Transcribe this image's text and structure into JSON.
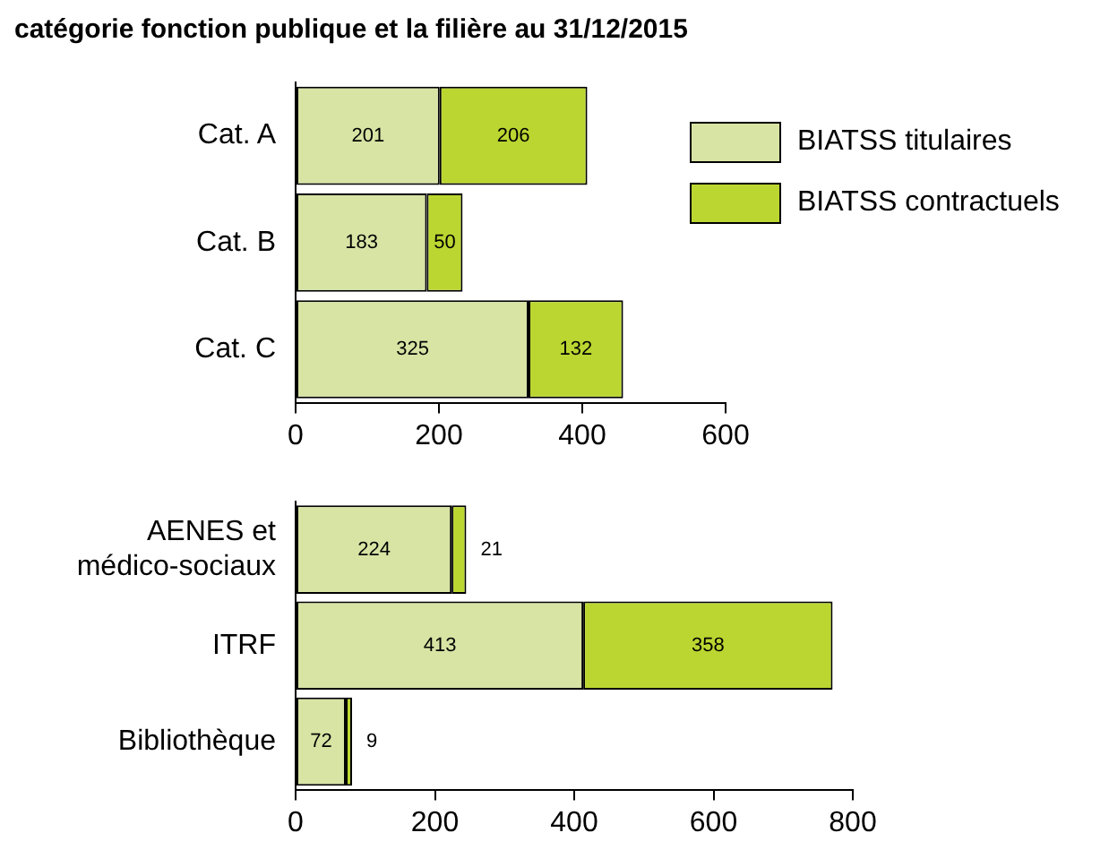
{
  "chart_data": [
    {
      "type": "bar",
      "title": "catégorie fonction publique et la filière au 31/12/2015",
      "orientation": "horizontal",
      "stacked": true,
      "categories": [
        "Cat. A",
        "Cat. B",
        "Cat. C"
      ],
      "series": [
        {
          "name": "BIATSS titulaires",
          "color": "#d7e4a4",
          "values": [
            201,
            183,
            325
          ]
        },
        {
          "name": "BIATSS contractuels",
          "color": "#bcd631",
          "values": [
            206,
            50,
            132
          ]
        }
      ],
      "xlim": [
        0,
        600
      ],
      "xticks": [
        0,
        200,
        400,
        600
      ],
      "data_labels": true,
      "legend": "right",
      "grid": false
    },
    {
      "type": "bar",
      "orientation": "horizontal",
      "stacked": true,
      "categories": [
        "AENES et médico-sociaux",
        "ITRF",
        "Bibliothèque"
      ],
      "series": [
        {
          "color": "#d7e4a4",
          "values": [
            224,
            413,
            72
          ]
        },
        {
          "color": "#bcd631",
          "values": [
            21,
            358,
            9
          ]
        }
      ],
      "xlim": [
        0,
        800
      ],
      "xticks": [
        0,
        200,
        400,
        600,
        800
      ],
      "data_labels": true,
      "grid": false
    }
  ]
}
